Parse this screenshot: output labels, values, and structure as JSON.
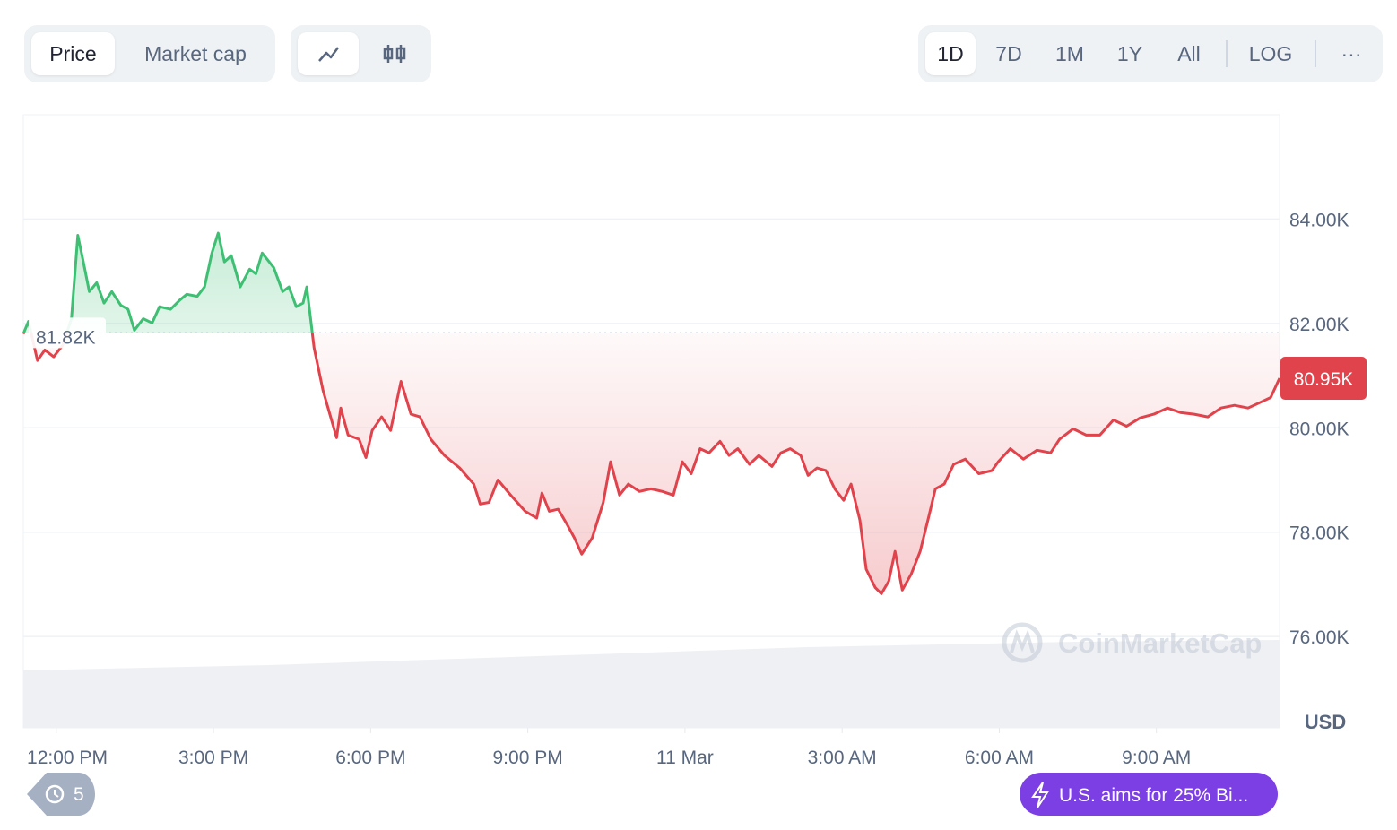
{
  "ui": {
    "tabs": [
      "Price",
      "Market cap"
    ],
    "ranges": [
      "1D",
      "7D",
      "1M",
      "1Y",
      "All",
      "LOG"
    ],
    "more": "···",
    "currency": "USD",
    "watermark": "CoinMarketCap",
    "history_count": "5",
    "news": "U.S. aims for 25% Bi..."
  },
  "chart_data": {
    "type": "line",
    "x": [
      -0.63,
      -0.53,
      -0.36,
      -0.22,
      -0.05,
      0.12,
      0.29,
      0.41,
      0.51,
      0.63,
      0.77,
      0.91,
      1.06,
      1.23,
      1.37,
      1.49,
      1.66,
      1.83,
      1.97,
      2.18,
      2.35,
      2.49,
      2.69,
      2.83,
      2.97,
      3.09,
      3.21,
      3.34,
      3.51,
      3.69,
      3.81,
      3.93,
      4.15,
      4.32,
      4.44,
      4.58,
      4.71,
      4.78,
      4.92,
      5.09,
      5.35,
      5.43,
      5.57,
      5.78,
      5.91,
      6.03,
      6.21,
      6.38,
      6.58,
      6.77,
      6.94,
      7.15,
      7.41,
      7.7,
      7.97,
      8.09,
      8.26,
      8.43,
      8.69,
      8.95,
      9.17,
      9.27,
      9.41,
      9.58,
      9.75,
      9.89,
      10.03,
      10.23,
      10.44,
      10.58,
      10.75,
      10.92,
      11.13,
      11.35,
      11.57,
      11.78,
      11.95,
      12.12,
      12.29,
      12.46,
      12.67,
      12.84,
      13.01,
      13.23,
      13.41,
      13.66,
      13.83,
      14.01,
      14.21,
      14.35,
      14.52,
      14.69,
      14.86,
      15.03,
      15.17,
      15.34,
      15.46,
      15.63,
      15.75,
      15.89,
      16.01,
      16.15,
      16.32,
      16.49,
      16.66,
      16.78,
      16.95,
      17.13,
      17.35,
      17.61,
      17.86,
      17.98,
      18.21,
      18.46,
      18.72,
      18.98,
      19.15,
      19.41,
      19.66,
      19.92,
      20.18,
      20.43,
      20.69,
      20.95,
      21.21,
      21.47,
      21.72,
      21.98,
      22.23,
      22.49,
      22.75,
      23.01,
      23.18,
      23.35
    ],
    "values": [
      81800,
      82040,
      81290,
      81490,
      81360,
      81580,
      82090,
      83690,
      83210,
      82610,
      82780,
      82390,
      82610,
      82350,
      82270,
      81870,
      82090,
      82010,
      82320,
      82270,
      82440,
      82560,
      82520,
      82700,
      83350,
      83730,
      83180,
      83300,
      82700,
      83040,
      82950,
      83350,
      83070,
      82610,
      82700,
      82320,
      82390,
      82700,
      81530,
      80720,
      79810,
      80380,
      79860,
      79780,
      79430,
      79950,
      80210,
      79950,
      80890,
      80260,
      80210,
      79780,
      79470,
      79230,
      78920,
      78540,
      78570,
      79000,
      78690,
      78400,
      78270,
      78750,
      78400,
      78440,
      78150,
      77890,
      77580,
      77890,
      78570,
      79350,
      78710,
      78920,
      78780,
      78830,
      78780,
      78710,
      79350,
      79120,
      79600,
      79520,
      79740,
      79470,
      79600,
      79300,
      79470,
      79260,
      79520,
      79600,
      79470,
      79090,
      79230,
      79180,
      78830,
      78610,
      78920,
      78230,
      77290,
      76940,
      76820,
      77060,
      77630,
      76890,
      77200,
      77630,
      78320,
      78830,
      78920,
      79300,
      79400,
      79120,
      79180,
      79350,
      79600,
      79400,
      79570,
      79520,
      79780,
      79980,
      79860,
      79860,
      80150,
      80030,
      80190,
      80260,
      80380,
      80290,
      80260,
      80210,
      80380,
      80430,
      80380,
      80500,
      80580,
      80950
    ],
    "last_label": "80.95K",
    "reference": {
      "value": 81820,
      "label": "81.82K"
    },
    "up_color": "#3fbf74",
    "down_color": "#e0434b",
    "xlim": [
      -0.63,
      23.35
    ],
    "xticks": [
      {
        "value": 0,
        "label": "12:00 PM"
      },
      {
        "value": 3,
        "label": "3:00 PM"
      },
      {
        "value": 6,
        "label": "6:00 PM"
      },
      {
        "value": 9,
        "label": "9:00 PM"
      },
      {
        "value": 12,
        "label": "11 Mar"
      },
      {
        "value": 15,
        "label": "3:00 AM"
      },
      {
        "value": 18,
        "label": "6:00 AM"
      },
      {
        "value": 21,
        "label": "9:00 AM"
      }
    ],
    "ylim": [
      74250,
      86000
    ],
    "yticks": [
      {
        "value": 76000,
        "label": "76.00K"
      },
      {
        "value": 78000,
        "label": "78.00K"
      },
      {
        "value": 80000,
        "label": "80.00K"
      },
      {
        "value": 82000,
        "label": "82.00K"
      },
      {
        "value": 84000,
        "label": "84.00K"
      }
    ],
    "grid": true
  }
}
